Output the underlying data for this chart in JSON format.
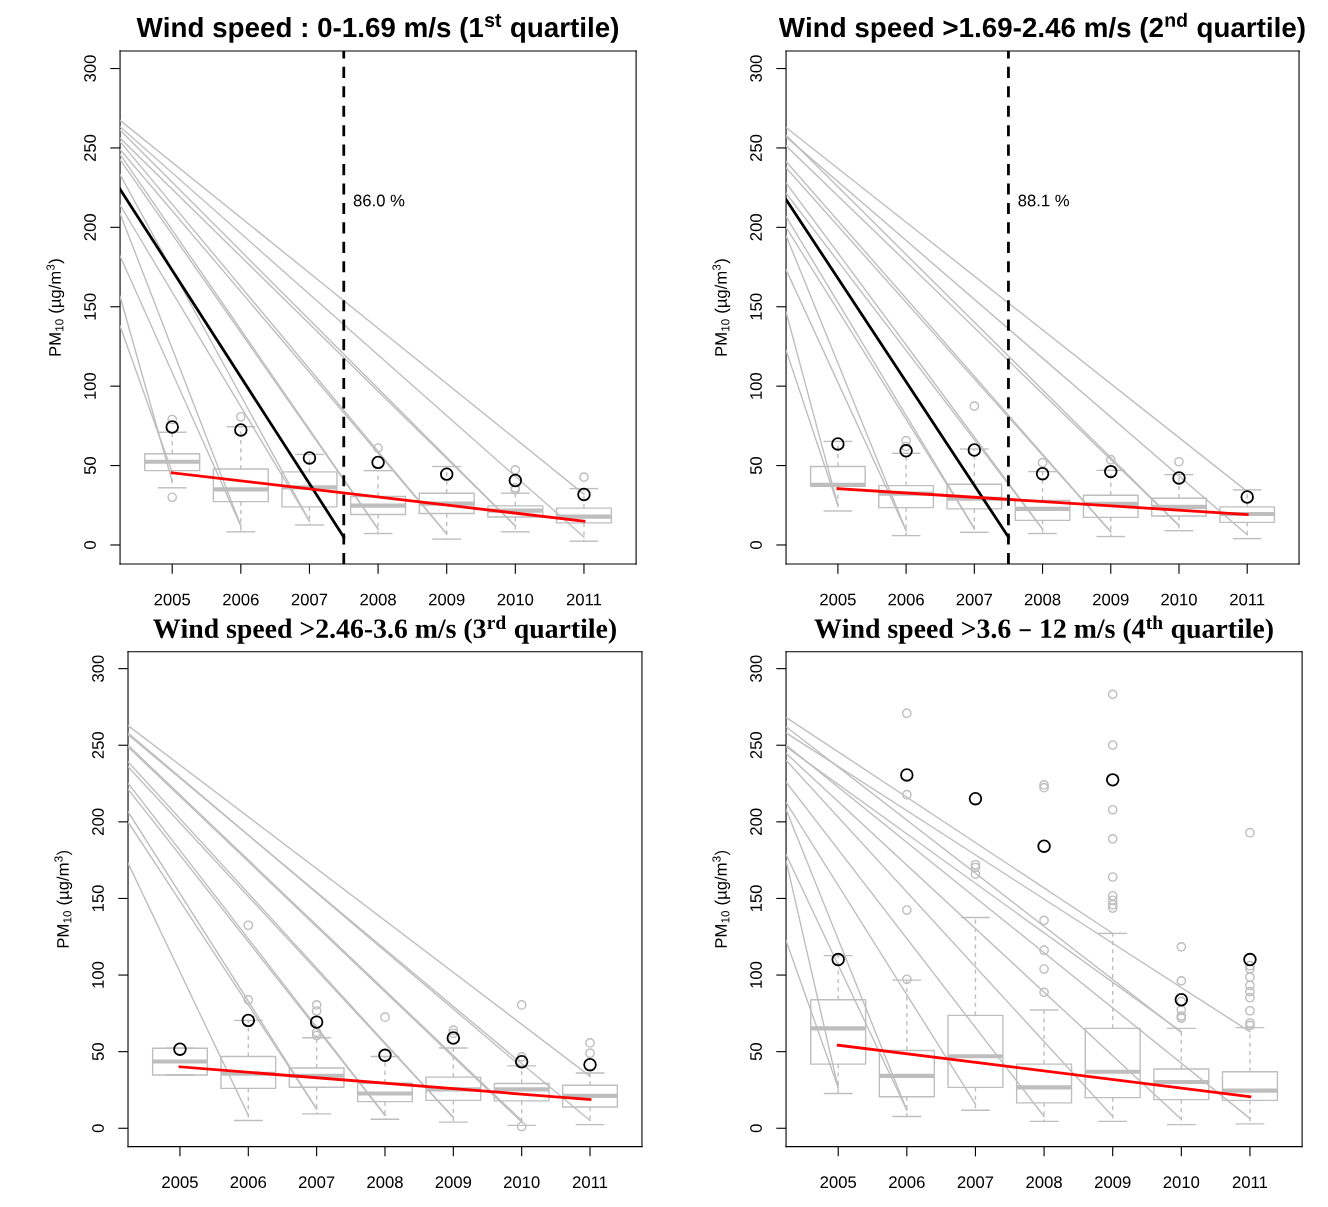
{
  "chart_data": [
    {
      "type": "box",
      "title": "Wind speed : 0-1.69 m/s (1$^{st}$ quartile)",
      "ylabel": "PM$_{10}$ (µg/m$^{3}$)",
      "x": [
        2005,
        2006,
        2007,
        2008,
        2009,
        2010,
        2011
      ],
      "xlim": [
        2004.24,
        2011.76
      ],
      "xticks": [
        2005,
        2006,
        2007,
        2008,
        2009,
        2010,
        2011
      ],
      "ylim": [
        -12,
        311
      ],
      "yticks": [
        0,
        50,
        100,
        150,
        200,
        250,
        300
      ],
      "ref_lines": [
        {
          "axis": "x",
          "value": 2007.5,
          "color": "#000000",
          "line_style": "dashed"
        }
      ],
      "annotations": [
        {
          "text": "86.0 %",
          "x": 2007.5,
          "y": 216
        }
      ],
      "series": [
        {
          "color": "#bebebe",
          "boxes": [
            {
              "low": 36,
              "q1": 46.8,
              "median": 52.4,
              "q3": 57.4,
              "high": 71,
              "outliers": [
                79,
                30
              ]
            },
            {
              "low": 8.3,
              "q1": 27.3,
              "median": 35,
              "q3": 47.8,
              "high": 74.5,
              "outliers": [
                80.7
              ]
            },
            {
              "low": 12.6,
              "q1": 24,
              "median": 36.3,
              "q3": 46,
              "high": 57
            },
            {
              "low": 7.2,
              "q1": 19.2,
              "median": 24.8,
              "q3": 30.5,
              "high": 46.8,
              "outliers": [
                61
              ]
            },
            {
              "low": 3.7,
              "q1": 19.8,
              "median": 26,
              "q3": 32.6,
              "high": 49.4
            },
            {
              "low": 8.3,
              "q1": 17.6,
              "median": 21.6,
              "q3": 24.6,
              "high": 32.6,
              "outliers": [
                47.3,
                36,
                34.7
              ]
            },
            {
              "low": 2.4,
              "q1": 13.9,
              "median": 17.9,
              "q3": 23.2,
              "high": 35.5,
              "outliers": [
                42.7
              ]
            }
          ]
        },
        {
          "type": "line",
          "color": "#bebebe",
          "x": [
            2004.24,
            2005
          ],
          "values": [
            137.9,
            45.7
          ]
        },
        {
          "type": "line",
          "color": "#bebebe",
          "x": [
            2004.24,
            2005
          ],
          "values": [
            156.6,
            40
          ]
        },
        {
          "type": "line",
          "color": "#bebebe",
          "x": [
            2004.24,
            2006
          ],
          "values": [
            182,
            12
          ]
        },
        {
          "type": "line",
          "color": "#bebebe",
          "x": [
            2004.24,
            2006
          ],
          "values": [
            208.7,
            12
          ]
        },
        {
          "type": "line",
          "color": "#bebebe",
          "x": [
            2004.24,
            2007
          ],
          "values": [
            214,
            15
          ]
        },
        {
          "type": "line",
          "color": "#bebebe",
          "x": [
            2004.24,
            2007
          ],
          "values": [
            233.2,
            15
          ]
        },
        {
          "type": "line",
          "color": "#bebebe",
          "x": [
            2004.24,
            2008
          ],
          "values": [
            242.6,
            10
          ]
        },
        {
          "type": "line",
          "color": "#bebebe",
          "x": [
            2004.24,
            2008
          ],
          "values": [
            246,
            10
          ]
        },
        {
          "type": "line",
          "color": "#bebebe",
          "x": [
            2004.24,
            2009
          ],
          "values": [
            249,
            7
          ]
        },
        {
          "type": "line",
          "color": "#bebebe",
          "x": [
            2004.24,
            2009
          ],
          "values": [
            254,
            7
          ]
        },
        {
          "type": "line",
          "color": "#bebebe",
          "x": [
            2004.24,
            2010
          ],
          "values": [
            256.2,
            12
          ]
        },
        {
          "type": "line",
          "color": "#bebebe",
          "x": [
            2004.24,
            2010
          ],
          "values": [
            261.3,
            12
          ]
        },
        {
          "type": "line",
          "color": "#bebebe",
          "x": [
            2004.24,
            2011
          ],
          "values": [
            263.4,
            5
          ]
        },
        {
          "type": "line",
          "color": "#bebebe",
          "x": [
            2004.24,
            2011
          ],
          "values": [
            267.4,
            32
          ]
        },
        {
          "type": "line",
          "color": "#000000",
          "x": [
            2004.24,
            2007.5
          ],
          "values": [
            224,
            5
          ]
        },
        {
          "type": "line",
          "color": "#ff0000",
          "x": [
            2005,
            2011
          ],
          "values": [
            45.4,
            15
          ]
        },
        {
          "type": "scatter",
          "color": "#000000",
          "marker": "circle",
          "x": [
            2005,
            2006,
            2007,
            2008,
            2009,
            2010,
            2011
          ],
          "values": [
            74.3,
            72.4,
            54.8,
            52,
            44.6,
            40.6,
            31.8
          ]
        }
      ]
    },
    {
      "type": "box",
      "title": "Wind speed >1.69-2.46 m/s (2$^{nd}$ quartile)",
      "ylabel": "PM$_{10}$ (µg/m$^{3}$)",
      "x": [
        2005,
        2006,
        2007,
        2008,
        2009,
        2010,
        2011
      ],
      "xlim": [
        2004.24,
        2011.76
      ],
      "xticks": [
        2005,
        2006,
        2007,
        2008,
        2009,
        2010,
        2011
      ],
      "ylim": [
        -12,
        311
      ],
      "yticks": [
        0,
        50,
        100,
        150,
        200,
        250,
        300
      ],
      "ref_lines": [
        {
          "axis": "x",
          "value": 2007.5,
          "color": "#000000",
          "line_style": "dashed"
        }
      ],
      "annotations": [
        {
          "text": "88.1 %",
          "x": 2007.5,
          "y": 216
        }
      ],
      "series": [
        {
          "color": "#bebebe",
          "boxes": [
            {
              "low": 21.4,
              "q1": 36.9,
              "median": 37.9,
              "q3": 49.4,
              "high": 65.2
            },
            {
              "low": 5.9,
              "q1": 23.5,
              "median": 32.3,
              "q3": 37.4,
              "high": 57.7,
              "outliers": [
                65.7,
                62
              ]
            },
            {
              "low": 8,
              "q1": 22.7,
              "median": 29.1,
              "q3": 38.2,
              "high": 60.4,
              "outliers": [
                87.4
              ]
            },
            {
              "low": 7.2,
              "q1": 15.5,
              "median": 22.7,
              "q3": 28,
              "high": 46.2,
              "outliers": [
                51.8
              ]
            },
            {
              "low": 5.3,
              "q1": 17.4,
              "median": 25.9,
              "q3": 31.3,
              "high": 47,
              "outliers": [
                53.7
              ]
            },
            {
              "low": 9,
              "q1": 18.2,
              "median": 24,
              "q3": 29.4,
              "high": 44.3,
              "outliers": [
                52.4
              ]
            },
            {
              "low": 4,
              "q1": 14.2,
              "median": 19.5,
              "q3": 24,
              "high": 34.7
            }
          ]
        },
        {
          "type": "line",
          "color": "#bebebe",
          "x": [
            2004.24,
            2005
          ],
          "values": [
            122.6,
            25
          ]
        },
        {
          "type": "line",
          "color": "#bebebe",
          "x": [
            2004.24,
            2005
          ],
          "values": [
            146.7,
            25
          ]
        },
        {
          "type": "line",
          "color": "#bebebe",
          "x": [
            2004.24,
            2006
          ],
          "values": [
            173.4,
            9
          ]
        },
        {
          "type": "line",
          "color": "#bebebe",
          "x": [
            2004.24,
            2006
          ],
          "values": [
            194.8,
            9
          ]
        },
        {
          "type": "line",
          "color": "#bebebe",
          "x": [
            2004.24,
            2007
          ],
          "values": [
            200,
            10.4
          ]
        },
        {
          "type": "line",
          "color": "#bebebe",
          "x": [
            2004.24,
            2007
          ],
          "values": [
            206.8,
            10.4
          ]
        },
        {
          "type": "line",
          "color": "#bebebe",
          "x": [
            2004.24,
            2008
          ],
          "values": [
            221.5,
            10
          ]
        },
        {
          "type": "line",
          "color": "#bebebe",
          "x": [
            2004.24,
            2008
          ],
          "values": [
            228,
            10
          ]
        },
        {
          "type": "line",
          "color": "#bebebe",
          "x": [
            2004.24,
            2009
          ],
          "values": [
            237.5,
            8.3
          ]
        },
        {
          "type": "line",
          "color": "#bebebe",
          "x": [
            2004.24,
            2009
          ],
          "values": [
            241.5,
            8.3
          ]
        },
        {
          "type": "line",
          "color": "#bebebe",
          "x": [
            2004.24,
            2010
          ],
          "values": [
            251.4,
            12.3
          ]
        },
        {
          "type": "line",
          "color": "#bebebe",
          "x": [
            2004.24,
            2010
          ],
          "values": [
            258,
            12.3
          ]
        },
        {
          "type": "line",
          "color": "#bebebe",
          "x": [
            2004.24,
            2011
          ],
          "values": [
            257,
            6.4
          ]
        },
        {
          "type": "line",
          "color": "#bebebe",
          "x": [
            2004.24,
            2011
          ],
          "values": [
            262.9,
            33.7
          ]
        },
        {
          "type": "line",
          "color": "#000000",
          "x": [
            2004.24,
            2007.5
          ],
          "values": [
            217.5,
            5
          ]
        },
        {
          "type": "line",
          "color": "#ff0000",
          "x": [
            2005,
            2011
          ],
          "values": [
            35.5,
            19.2
          ]
        },
        {
          "type": "scatter",
          "color": "#000000",
          "marker": "circle",
          "x": [
            2005,
            2006,
            2007,
            2008,
            2009,
            2010,
            2011
          ],
          "values": [
            63.6,
            59.3,
            59.8,
            44.9,
            46.2,
            42.2,
            30.2
          ]
        }
      ]
    },
    {
      "type": "box",
      "title": "Wind speed >2.46-3.6 m/s (3$^{rd}$ quartile)",
      "ylabel": "PM$_{10}$ (µg/m$^{3}$)",
      "x": [
        2005,
        2006,
        2007,
        2008,
        2009,
        2010,
        2011
      ],
      "xlim": [
        2004.24,
        2011.76
      ],
      "xticks": [
        2005,
        2006,
        2007,
        2008,
        2009,
        2010,
        2011
      ],
      "ylim": [
        -12,
        311
      ],
      "yticks": [
        0,
        50,
        100,
        150,
        200,
        250,
        300
      ],
      "series": [
        {
          "color": "#bebebe",
          "boxes": [
            {
              "low": 34.8,
              "q1": 34.8,
              "median": 43.6,
              "q3": 52.2,
              "high": 52.2
            },
            {
              "low": 5.1,
              "q1": 26,
              "median": 35.6,
              "q3": 46.8,
              "high": 70.4,
              "outliers": [
                132.5,
                83.8
              ]
            },
            {
              "low": 9.4,
              "q1": 26.8,
              "median": 34.3,
              "q3": 39.3,
              "high": 59.1,
              "outliers": [
                80.5,
                76.5,
                62.6,
                60.5
              ]
            },
            {
              "low": 5.9,
              "q1": 17.4,
              "median": 22.7,
              "q3": 29.4,
              "high": 46.8,
              "outliers": [
                72.5
              ]
            },
            {
              "low": 4,
              "q1": 18.2,
              "median": 25.4,
              "q3": 33.4,
              "high": 52.4,
              "outliers": [
                64,
                62
              ]
            },
            {
              "low": 1.9,
              "q1": 17.9,
              "median": 25.4,
              "q3": 29.2,
              "high": 40.7,
              "outliers": [
                80.5,
                46.6,
                1.1
              ]
            },
            {
              "low": 2.4,
              "q1": 13.9,
              "median": 21.1,
              "q3": 28.1,
              "high": 36.1,
              "outliers": [
                55.7,
                49
              ]
            }
          ]
        },
        {
          "type": "line",
          "color": "#bebebe",
          "x": [
            2004.24,
            2006
          ],
          "values": [
            173.1,
            8.5
          ]
        },
        {
          "type": "line",
          "color": "#bebebe",
          "x": [
            2004.24,
            2007
          ],
          "values": [
            199.9,
            12.6
          ]
        },
        {
          "type": "line",
          "color": "#bebebe",
          "x": [
            2004.24,
            2007
          ],
          "values": [
            206.6,
            12.6
          ]
        },
        {
          "type": "line",
          "color": "#bebebe",
          "x": [
            2004.24,
            2008
          ],
          "values": [
            221.3,
            8.5
          ]
        },
        {
          "type": "line",
          "color": "#bebebe",
          "x": [
            2004.24,
            2008
          ],
          "values": [
            225.3,
            8.5
          ]
        },
        {
          "type": "line",
          "color": "#bebebe",
          "x": [
            2004.24,
            2009
          ],
          "values": [
            236,
            7
          ]
        },
        {
          "type": "line",
          "color": "#bebebe",
          "x": [
            2004.24,
            2009
          ],
          "values": [
            239.2,
            7
          ]
        },
        {
          "type": "line",
          "color": "#bebebe",
          "x": [
            2004.24,
            2010
          ],
          "values": [
            248.9,
            4
          ]
        },
        {
          "type": "line",
          "color": "#bebebe",
          "x": [
            2004.24,
            2010
          ],
          "values": [
            250,
            5
          ]
        },
        {
          "type": "line",
          "color": "#bebebe",
          "x": [
            2004.24,
            2011
          ],
          "values": [
            256.9,
            5
          ]
        },
        {
          "type": "line",
          "color": "#bebebe",
          "x": [
            2004.24,
            2010
          ],
          "values": [
            258,
            40
          ]
        },
        {
          "type": "line",
          "color": "#bebebe",
          "x": [
            2004.24,
            2011
          ],
          "values": [
            262.8,
            34
          ]
        },
        {
          "type": "line",
          "color": "#ff0000",
          "x": [
            2005,
            2011
          ],
          "values": [
            40.1,
            18.7
          ]
        },
        {
          "type": "scatter",
          "color": "#000000",
          "marker": "circle",
          "x": [
            2005,
            2006,
            2007,
            2008,
            2009,
            2010,
            2011
          ],
          "values": [
            51.6,
            70.4,
            69.3,
            47.6,
            58.9,
            43.4,
            41.5
          ]
        }
      ]
    },
    {
      "type": "box",
      "title": "Wind speed >3.6 – 12 m/s (4$^{th}$ quartile)",
      "ylabel": "PM$_{10}$ (µg/m$^{3}$)",
      "x": [
        2005,
        2006,
        2007,
        2008,
        2009,
        2010,
        2011
      ],
      "xlim": [
        2004.24,
        2011.76
      ],
      "xticks": [
        2005,
        2006,
        2007,
        2008,
        2009,
        2010,
        2011
      ],
      "ylim": [
        -12,
        311
      ],
      "yticks": [
        0,
        50,
        100,
        150,
        200,
        250,
        300
      ],
      "series": [
        {
          "color": "#bebebe",
          "boxes": [
            {
              "low": 22.7,
              "q1": 41.9,
              "median": 65.2,
              "q3": 83.9,
              "high": 112.7
            },
            {
              "low": 7.7,
              "q1": 20.6,
              "median": 34.2,
              "q3": 50.8,
              "high": 96.7,
              "outliers": [
                270.9,
                217.7,
                142.4,
                97.2
              ]
            },
            {
              "low": 11.8,
              "q1": 26.7,
              "median": 47,
              "q3": 73.7,
              "high": 137.6,
              "outliers": [
                172,
                170.2,
                165.9
              ]
            },
            {
              "low": 4.5,
              "q1": 16.6,
              "median": 26.7,
              "q3": 41.9,
              "high": 77.2,
              "outliers": [
                224.1,
                222.3,
                135.7,
                116.2,
                103.9,
                88.7
              ]
            },
            {
              "low": 4.5,
              "q1": 20,
              "median": 36.9,
              "q3": 65.2,
              "high": 127.2,
              "outliers": [
                283.2,
                250.1,
                207.9,
                188.9,
                164,
                151.7,
                148.8,
                145.9,
                143.7
              ]
            },
            {
              "low": 2.4,
              "q1": 18.7,
              "median": 30.2,
              "q3": 38.7,
              "high": 65.2,
              "outliers": [
                118.4,
                96.2,
                82.8,
                77.2,
                73.2,
                71.9
              ]
            },
            {
              "low": 2.9,
              "q1": 18.2,
              "median": 24.6,
              "q3": 36.9,
              "high": 65.7,
              "outliers": [
                192.9,
                106.1,
                103.9,
                98.6,
                93.2,
                89.2,
                85.2,
                76.7,
                68.7,
                67.1
              ]
            }
          ]
        },
        {
          "type": "line",
          "color": "#bebebe",
          "x": [
            2004.24,
            2005
          ],
          "values": [
            122.6,
            26.4
          ]
        },
        {
          "type": "line",
          "color": "#bebebe",
          "x": [
            2004.24,
            2005
          ],
          "values": [
            174.7,
            26.4
          ]
        },
        {
          "type": "line",
          "color": "#bebebe",
          "x": [
            2004.24,
            2006
          ],
          "values": [
            178.7,
            11.8
          ]
        },
        {
          "type": "line",
          "color": "#bebebe",
          "x": [
            2004.24,
            2006
          ],
          "values": [
            208.1,
            11.8
          ]
        },
        {
          "type": "line",
          "color": "#bebebe",
          "x": [
            2004.24,
            2007
          ],
          "values": [
            212.7,
            15.8
          ]
        },
        {
          "type": "line",
          "color": "#bebebe",
          "x": [
            2004.24,
            2008
          ],
          "values": [
            226,
            7.7
          ]
        },
        {
          "type": "line",
          "color": "#bebebe",
          "x": [
            2004.24,
            2009
          ],
          "values": [
            240.2,
            7.7
          ]
        },
        {
          "type": "line",
          "color": "#bebebe",
          "x": [
            2004.24,
            2010
          ],
          "values": [
            244.7,
            5.9
          ]
        },
        {
          "type": "line",
          "color": "#bebebe",
          "x": [
            2004.24,
            2010
          ],
          "values": [
            249,
            63
          ]
        },
        {
          "type": "line",
          "color": "#bebebe",
          "x": [
            2004.24,
            2011
          ],
          "values": [
            250.1,
            6.4
          ]
        },
        {
          "type": "line",
          "color": "#bebebe",
          "x": [
            2004.24,
            2011
          ],
          "values": [
            258.1,
            63
          ]
        },
        {
          "type": "line",
          "color": "#bebebe",
          "x": [
            2004.24,
            2010
          ],
          "values": [
            262.1,
            62.5
          ]
        },
        {
          "type": "line",
          "color": "#bebebe",
          "x": [
            2004.24,
            2009
          ],
          "values": [
            268.2,
            127.2
          ]
        },
        {
          "type": "line",
          "color": "#ff0000",
          "x": [
            2005,
            2011
          ],
          "values": [
            54.2,
            20.6
          ]
        },
        {
          "type": "scatter",
          "color": "#000000",
          "marker": "circle",
          "x": [
            2005,
            2006,
            2007,
            2008,
            2009,
            2010,
            2011
          ],
          "values": [
            110.1,
            230.6,
            215.1,
            184.1,
            227.4,
            83.9,
            110.1
          ]
        }
      ]
    }
  ]
}
